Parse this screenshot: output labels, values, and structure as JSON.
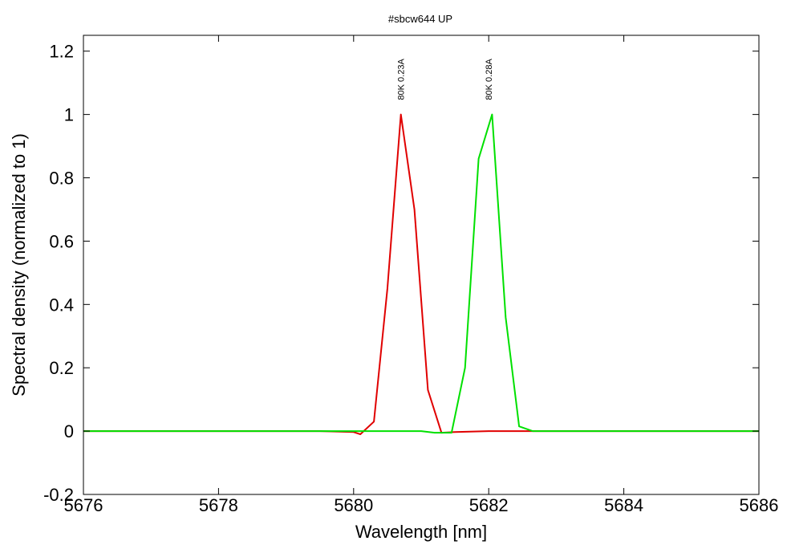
{
  "chart_data": {
    "type": "line",
    "title": "#sbcw644 UP",
    "xlabel": "Wavelength [nm]",
    "ylabel": "Spectral density (normalized to 1)",
    "xlim": [
      5676,
      5686
    ],
    "ylim": [
      -0.2,
      1.25
    ],
    "x_ticks": [
      5676,
      5678,
      5680,
      5682,
      5684,
      5686
    ],
    "x_tick_labels": [
      "5676",
      "5678",
      "5680",
      "5682",
      "5684",
      "5686"
    ],
    "y_ticks": [
      -0.2,
      0,
      0.2,
      0.4,
      0.6,
      0.8,
      1,
      1.2
    ],
    "y_tick_labels": [
      "-0.2",
      "0",
      "0.2",
      "0.4",
      "0.6",
      "0.8",
      "1",
      "1.2"
    ],
    "grid": false,
    "series": [
      {
        "name": "80K 0.23A",
        "color": "#e00000",
        "peak_x": 5680.7,
        "x": [
          5676,
          5677,
          5678,
          5679,
          5679.5,
          5680,
          5680.1,
          5680.3,
          5680.5,
          5680.7,
          5680.9,
          5681.1,
          5681.3,
          5681.5,
          5682,
          5683,
          5684,
          5685,
          5686
        ],
        "y": [
          0,
          0,
          0,
          0,
          0,
          -0.003,
          -0.01,
          0.03,
          0.45,
          1.0,
          0.7,
          0.13,
          -0.005,
          -0.003,
          0,
          0,
          0,
          0,
          0
        ]
      },
      {
        "name": "80K 0.28A",
        "color": "#00e000",
        "peak_x": 5682.0,
        "x": [
          5676,
          5677,
          5678,
          5679,
          5680,
          5680.5,
          5681,
          5681.2,
          5681.45,
          5681.65,
          5681.85,
          5682.05,
          5682.25,
          5682.45,
          5682.65,
          5683,
          5684,
          5685,
          5686
        ],
        "y": [
          0,
          0,
          0,
          0,
          0,
          0,
          0,
          -0.005,
          -0.005,
          0.2,
          0.86,
          1.0,
          0.36,
          0.015,
          0,
          0,
          0,
          0,
          0
        ]
      }
    ]
  }
}
